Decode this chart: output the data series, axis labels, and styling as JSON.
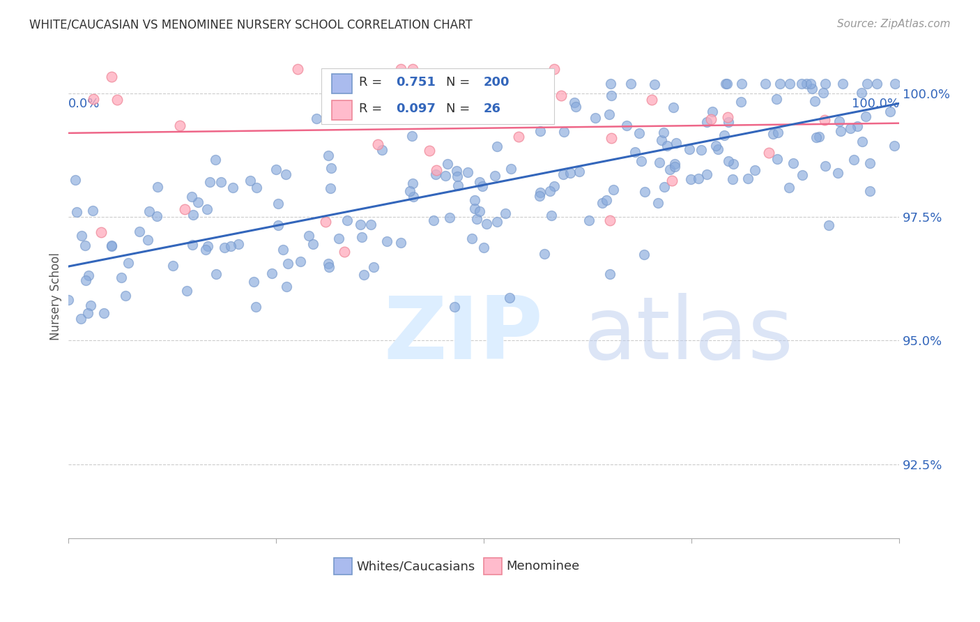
{
  "title": "WHITE/CAUCASIAN VS MENOMINEE NURSERY SCHOOL CORRELATION CHART",
  "source": "Source: ZipAtlas.com",
  "ylabel": "Nursery School",
  "ytick_labels": [
    "92.5%",
    "95.0%",
    "97.5%",
    "100.0%"
  ],
  "ytick_values": [
    0.925,
    0.95,
    0.975,
    1.0
  ],
  "xlim": [
    0.0,
    1.0
  ],
  "ylim": [
    0.91,
    1.008
  ],
  "blue_R": 0.751,
  "blue_N": 200,
  "pink_R": 0.097,
  "pink_N": 26,
  "blue_color": "#88AADD",
  "blue_edge_color": "#7799CC",
  "pink_color": "#FFAABB",
  "pink_edge_color": "#EE8899",
  "blue_line_color": "#3366BB",
  "pink_line_color": "#EE6688",
  "legend_label_blue": "Whites/Caucasians",
  "legend_label_pink": "Menominee",
  "blue_legend_face": "#AABBEE",
  "pink_legend_face": "#FFBBCC",
  "grid_color": "#CCCCCC",
  "title_color": "#333333",
  "axis_label_color": "#555555",
  "tick_label_color": "#3366BB",
  "source_color": "#999999",
  "background_color": "#FFFFFF",
  "blue_line_start_y": 0.965,
  "blue_line_end_y": 0.998,
  "pink_line_start_y": 0.992,
  "pink_line_end_y": 0.994
}
